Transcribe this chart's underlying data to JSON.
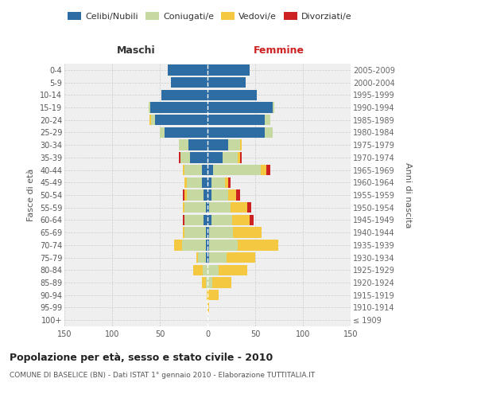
{
  "age_groups": [
    "100+",
    "95-99",
    "90-94",
    "85-89",
    "80-84",
    "75-79",
    "70-74",
    "65-69",
    "60-64",
    "55-59",
    "50-54",
    "45-49",
    "40-44",
    "35-39",
    "30-34",
    "25-29",
    "20-24",
    "15-19",
    "10-14",
    "5-9",
    "0-4"
  ],
  "birth_years": [
    "≤ 1909",
    "1910-1914",
    "1915-1919",
    "1920-1924",
    "1925-1929",
    "1930-1934",
    "1935-1939",
    "1940-1944",
    "1945-1949",
    "1950-1954",
    "1955-1959",
    "1960-1964",
    "1965-1969",
    "1970-1974",
    "1975-1979",
    "1980-1984",
    "1985-1989",
    "1990-1994",
    "1995-1999",
    "2000-2004",
    "2005-2009"
  ],
  "male": {
    "celibi": [
      0,
      0,
      0,
      0,
      0,
      2,
      2,
      2,
      4,
      2,
      4,
      6,
      6,
      18,
      20,
      45,
      55,
      60,
      48,
      38,
      42
    ],
    "coniugati": [
      0,
      0,
      0,
      2,
      5,
      8,
      25,
      22,
      20,
      22,
      18,
      16,
      18,
      10,
      10,
      5,
      4,
      2,
      0,
      0,
      0
    ],
    "vedovi": [
      0,
      0,
      1,
      4,
      10,
      2,
      8,
      2,
      0,
      2,
      2,
      2,
      2,
      0,
      0,
      0,
      2,
      0,
      0,
      0,
      0
    ],
    "divorziati": [
      0,
      0,
      0,
      0,
      0,
      0,
      0,
      0,
      2,
      0,
      2,
      0,
      0,
      2,
      0,
      0,
      0,
      0,
      0,
      0,
      0
    ]
  },
  "female": {
    "nubili": [
      0,
      0,
      0,
      0,
      0,
      2,
      2,
      2,
      4,
      2,
      4,
      4,
      6,
      16,
      22,
      60,
      60,
      68,
      52,
      40,
      44
    ],
    "coniugate": [
      0,
      0,
      0,
      5,
      12,
      18,
      30,
      25,
      22,
      22,
      18,
      14,
      50,
      16,
      12,
      8,
      6,
      2,
      0,
      0,
      0
    ],
    "vedove": [
      0,
      2,
      12,
      20,
      30,
      30,
      42,
      30,
      18,
      18,
      8,
      4,
      6,
      2,
      2,
      0,
      0,
      0,
      0,
      0,
      0
    ],
    "divorziate": [
      0,
      0,
      0,
      0,
      0,
      0,
      0,
      0,
      4,
      4,
      4,
      2,
      4,
      2,
      0,
      0,
      0,
      0,
      0,
      0,
      0
    ]
  },
  "colors": {
    "celibi": "#2e6da4",
    "coniugati": "#c5d9a0",
    "vedovi": "#f5c842",
    "divorziati": "#cc2222"
  },
  "xlim": 150,
  "title": "Popolazione per età, sesso e stato civile - 2010",
  "subtitle": "COMUNE DI BASELICE (BN) - Dati ISTAT 1° gennaio 2010 - Elaborazione TUTTITALIA.IT",
  "ylabel_left": "Fasce di età",
  "ylabel_right": "Anni di nascita",
  "xlabel_left": "Maschi",
  "xlabel_right": "Femmine",
  "legend_labels": [
    "Celibi/Nubili",
    "Coniugati/e",
    "Vedovi/e",
    "Divorziati/e"
  ],
  "bg_color": "#ffffff",
  "plot_bg_color": "#efefef"
}
